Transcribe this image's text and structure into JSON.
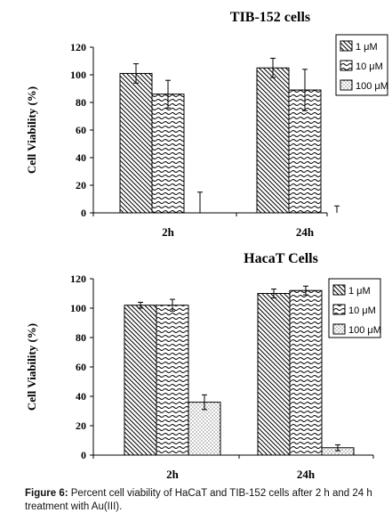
{
  "chart_data": [
    {
      "type": "bar",
      "title": "TIB-152 cells",
      "ylabel": "Cell Viability (%)",
      "xlabel": "",
      "categories": [
        "2h",
        "24h"
      ],
      "ylim": [
        0,
        120
      ],
      "yticks": [
        0,
        20,
        40,
        60,
        80,
        100,
        120
      ],
      "grid": false,
      "legend_position": "top-right",
      "series": [
        {
          "name": "1 μM",
          "values": [
            101,
            105
          ],
          "errors": [
            7,
            7
          ],
          "pattern": "diagonal-back"
        },
        {
          "name": "10 μM",
          "values": [
            86,
            89
          ],
          "errors": [
            10,
            15
          ],
          "pattern": "wavy"
        },
        {
          "name": "100 μM",
          "values": [
            0,
            0
          ],
          "errors": [
            15,
            5
          ],
          "pattern": "dots"
        }
      ]
    },
    {
      "type": "bar",
      "title": "HacaT Cells",
      "ylabel": "Cell Viability (%)",
      "xlabel": "",
      "categories": [
        "2h",
        "24h"
      ],
      "ylim": [
        0,
        120
      ],
      "yticks": [
        0,
        20,
        40,
        60,
        80,
        100,
        120
      ],
      "grid": false,
      "legend_position": "right",
      "series": [
        {
          "name": "1 μM",
          "values": [
            102,
            110
          ],
          "errors": [
            2,
            3
          ],
          "pattern": "diagonal-back"
        },
        {
          "name": "10 μM",
          "values": [
            102,
            112
          ],
          "errors": [
            4,
            3
          ],
          "pattern": "wavy"
        },
        {
          "name": "100 μM",
          "values": [
            36,
            5
          ],
          "errors": [
            5,
            2
          ],
          "pattern": "dots"
        }
      ]
    }
  ],
  "caption": {
    "label": "Figure 6:",
    "text": " Percent cell viability of HaCaT and TIB-152 cells after 2 h and 24 h treatment with Au(III)."
  }
}
